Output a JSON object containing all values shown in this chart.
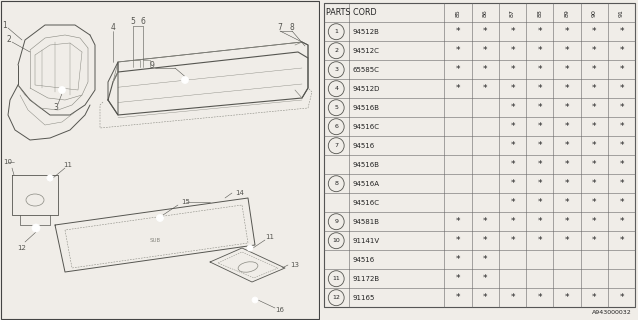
{
  "bg_color": "#f0ede8",
  "table_bg": "#f0ede8",
  "title": "PARTS CORD",
  "columns": [
    "85",
    "86",
    "87",
    "88",
    "89",
    "90",
    "91"
  ],
  "rows": [
    {
      "num": "1",
      "show_num": true,
      "parts": [
        "94512B",
        true,
        true,
        true,
        true,
        true,
        true,
        true
      ]
    },
    {
      "num": "2",
      "show_num": true,
      "parts": [
        "94512C",
        true,
        true,
        true,
        true,
        true,
        true,
        true
      ]
    },
    {
      "num": "3",
      "show_num": true,
      "parts": [
        "65585C",
        true,
        true,
        true,
        true,
        true,
        true,
        true
      ]
    },
    {
      "num": "4",
      "show_num": true,
      "parts": [
        "94512D",
        true,
        true,
        true,
        true,
        true,
        true,
        true
      ]
    },
    {
      "num": "5",
      "show_num": true,
      "parts": [
        "94516B",
        false,
        false,
        true,
        true,
        true,
        true,
        true
      ]
    },
    {
      "num": "6",
      "show_num": true,
      "parts": [
        "94516C",
        false,
        false,
        true,
        true,
        true,
        true,
        true
      ]
    },
    {
      "num": "7",
      "show_num": true,
      "parts": [
        "94516",
        false,
        false,
        true,
        true,
        true,
        true,
        true
      ]
    },
    {
      "num": "7",
      "show_num": false,
      "parts": [
        "94516B",
        false,
        false,
        true,
        true,
        true,
        true,
        true
      ]
    },
    {
      "num": "8",
      "show_num": true,
      "parts": [
        "94516A",
        false,
        false,
        true,
        true,
        true,
        true,
        true
      ]
    },
    {
      "num": "8",
      "show_num": false,
      "parts": [
        "94516C",
        false,
        false,
        true,
        true,
        true,
        true,
        true
      ]
    },
    {
      "num": "9",
      "show_num": true,
      "parts": [
        "94581B",
        true,
        true,
        true,
        true,
        true,
        true,
        true
      ]
    },
    {
      "num": "10",
      "show_num": true,
      "parts": [
        "91141V",
        true,
        true,
        true,
        true,
        true,
        true,
        true
      ]
    },
    {
      "num": "10",
      "show_num": false,
      "parts": [
        "94516",
        true,
        true,
        false,
        false,
        false,
        false,
        false
      ]
    },
    {
      "num": "11",
      "show_num": true,
      "parts": [
        "91172B",
        true,
        true,
        false,
        false,
        false,
        false,
        false
      ]
    },
    {
      "num": "12",
      "show_num": true,
      "parts": [
        "91165",
        true,
        true,
        true,
        true,
        true,
        true,
        true
      ]
    }
  ],
  "diagram_label": "A943000032",
  "line_color": "#888880",
  "dark_color": "#555550",
  "text_color": "#222222"
}
